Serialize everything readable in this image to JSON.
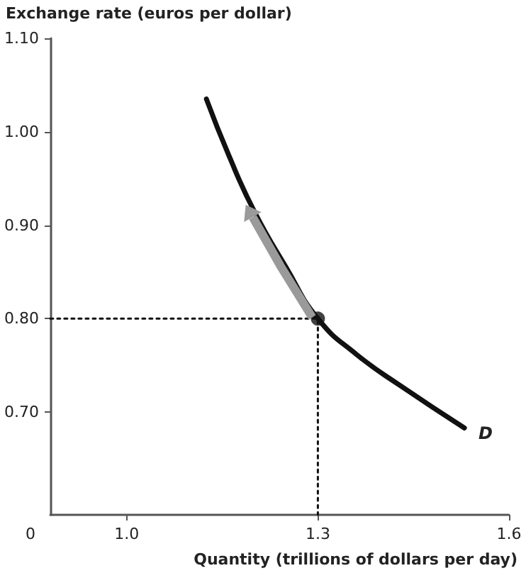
{
  "chart_data": {
    "type": "line",
    "xlabel": "Quantity (trillions of dollars per day)",
    "ylabel": "Exchange rate (euros per dollar)",
    "annotations": [
      "0"
    ],
    "xlim": [
      0.88,
      1.6
    ],
    "xticks": [
      {
        "value": 1,
        "label": "1.0"
      },
      1.3,
      1.6
    ],
    "ylim": [
      0.59,
      1.1
    ],
    "yticks": [
      {
        "value": 0.7,
        "label": "0.70"
      },
      {
        "value": 0.8,
        "label": "0.80"
      },
      {
        "value": 0.9,
        "label": "0.90"
      },
      {
        "value": 1,
        "label": "1.00"
      },
      {
        "value": 1.1,
        "label": "1.10"
      }
    ],
    "grid": false,
    "legend": false,
    "series": [
      {
        "name": "D",
        "color": "#111111",
        "marker": "none",
        "line_style": "solid",
        "x": [
          1.125,
          1.16,
          1.2,
          1.25,
          1.3,
          1.36,
          1.43,
          1.53
        ],
        "values": [
          1.035,
          0.975,
          0.915,
          0.855,
          0.8,
          0.762,
          0.728,
          0.683
        ]
      },
      {
        "type": "line",
        "color": "#111111",
        "marker": "none",
        "line_style": "dotted",
        "x": [
          0.88,
          1.3
        ],
        "values": [
          0.8,
          0.8
        ]
      },
      {
        "type": "line",
        "color": "#111111",
        "marker": "none",
        "line_style": "dotted",
        "x": [
          1.3,
          1.3
        ],
        "values": [
          0.59,
          0.8
        ]
      },
      {
        "type": "scatter",
        "color": "#111111",
        "marker": "circle",
        "x": [
          1.3
        ],
        "values": [
          0.8
        ]
      }
    ]
  }
}
